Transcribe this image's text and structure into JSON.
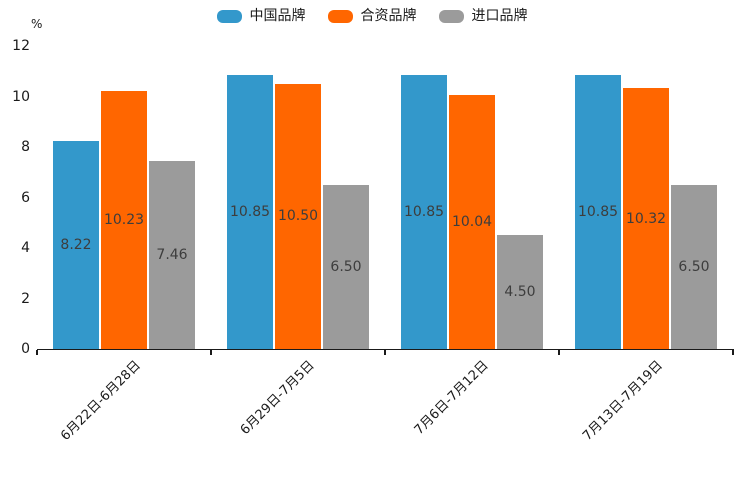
{
  "chart_data": {
    "type": "bar",
    "title": "",
    "unit_label": "%",
    "categories": [
      "6月22日-6月28日",
      "6月29日-7月5日",
      "7月6日-7月12日",
      "7月13日-7月19日"
    ],
    "series": [
      {
        "name": "中国品牌",
        "color": "#3398cb",
        "values": [
          8.22,
          10.85,
          10.85,
          10.85
        ],
        "labels": [
          "8.22",
          "10.85",
          "10.85",
          "10.85"
        ]
      },
      {
        "name": "合资品牌",
        "color": "#ff6600",
        "values": [
          10.23,
          10.5,
          10.04,
          10.32
        ],
        "labels": [
          "10.23",
          "10.50",
          "10.04",
          "10.32"
        ]
      },
      {
        "name": "进口品牌",
        "color": "#9b9b9b",
        "values": [
          7.46,
          6.5,
          4.5,
          6.5
        ],
        "labels": [
          "7.46",
          "6.50",
          "4.50",
          "6.50"
        ]
      }
    ],
    "yticks": [
      "0",
      "2",
      "4",
      "6",
      "8",
      "10",
      "12"
    ],
    "ylim": [
      0,
      12
    ],
    "legend_position": "top",
    "grid": false,
    "value_labels_position": "inside-center",
    "axis_color": "#1a1a1a",
    "value_label_color": "#3d3d3d"
  }
}
